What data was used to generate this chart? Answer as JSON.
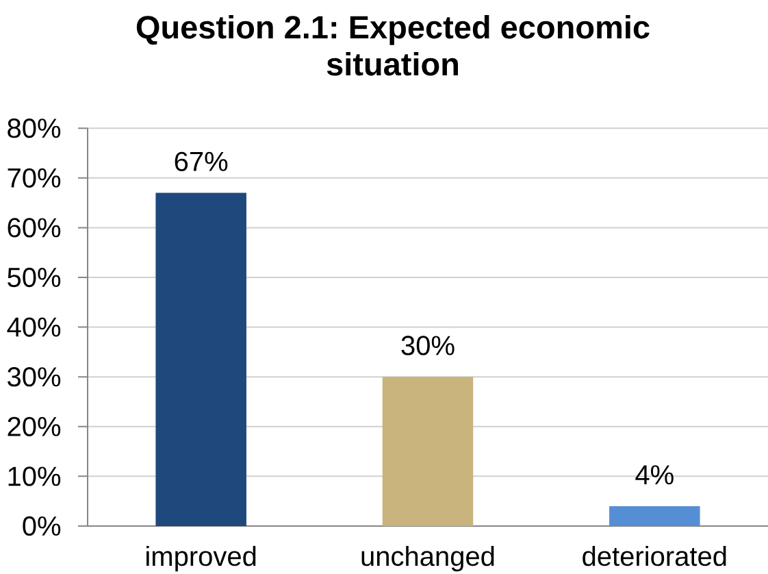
{
  "chart_data": {
    "type": "bar",
    "title": "Question 2.1: Expected economic situation",
    "categories": [
      "improved",
      "unchanged",
      "deteriorated"
    ],
    "values": [
      67,
      30,
      4
    ],
    "colors": [
      "#1f497d",
      "#c8b47c",
      "#558ed5"
    ],
    "value_labels": [
      "67%",
      "30%",
      "4%"
    ],
    "ylim": [
      0,
      80
    ],
    "yticks": [
      {
        "value": 0,
        "label": "0%"
      },
      {
        "value": 10,
        "label": "10%"
      },
      {
        "value": 20,
        "label": "20%"
      },
      {
        "value": 30,
        "label": "30%"
      },
      {
        "value": 40,
        "label": "40%"
      },
      {
        "value": 50,
        "label": "50%"
      },
      {
        "value": 60,
        "label": "60%"
      },
      {
        "value": 70,
        "label": "70%"
      },
      {
        "value": 80,
        "label": "80%"
      }
    ],
    "grid": "y"
  }
}
